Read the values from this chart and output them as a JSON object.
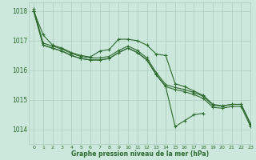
{
  "background_color": "#cce8dc",
  "grid_color": "#aaccbb",
  "line_color": "#2d6a2d",
  "title": "Graphe pression niveau de la mer (hPa)",
  "xlim": [
    -0.5,
    23
  ],
  "ylim": [
    1013.5,
    1018.3
  ],
  "yticks": [
    1014,
    1015,
    1016,
    1017,
    1018
  ],
  "xticks": [
    0,
    1,
    2,
    3,
    4,
    5,
    6,
    7,
    8,
    9,
    10,
    11,
    12,
    13,
    14,
    15,
    16,
    17,
    18,
    19,
    20,
    21,
    22,
    23
  ],
  "series": [
    [
      1018.0,
      1017.2,
      1016.85,
      1016.75,
      1016.6,
      1016.5,
      1016.45,
      1016.65,
      1016.7,
      1017.05,
      1017.05,
      1017.0,
      1016.85,
      1016.55,
      1016.5,
      1015.55,
      1015.45,
      1015.3,
      1015.15,
      1014.85,
      1014.8,
      1014.85,
      1014.85,
      1014.2
    ],
    [
      1018.0,
      1016.85,
      1016.75,
      1016.65,
      1016.5,
      1016.4,
      1016.35,
      1016.35,
      1016.4,
      1016.6,
      1016.75,
      1016.6,
      1016.35,
      1015.85,
      1015.45,
      1014.1,
      1014.3,
      1014.5,
      1014.55,
      null,
      null,
      null,
      null,
      null
    ],
    [
      1018.0,
      1016.85,
      1016.75,
      1016.65,
      1016.5,
      1016.4,
      1016.35,
      1016.35,
      1016.4,
      1016.6,
      1016.75,
      1016.6,
      1016.35,
      1015.85,
      1015.45,
      1015.35,
      1015.28,
      1015.18,
      1015.05,
      1014.75,
      1014.72,
      1014.78,
      1014.78,
      1014.1
    ],
    [
      1018.0,
      1016.85,
      1016.75,
      1016.65,
      1016.5,
      1016.4,
      1016.35,
      1016.35,
      1016.4,
      1016.6,
      1016.75,
      1016.6,
      1016.35,
      1015.85,
      1015.45,
      1015.35,
      1015.28,
      1015.18,
      1015.05,
      1014.75,
      1014.72,
      1014.78,
      1014.78,
      1014.1
    ]
  ]
}
